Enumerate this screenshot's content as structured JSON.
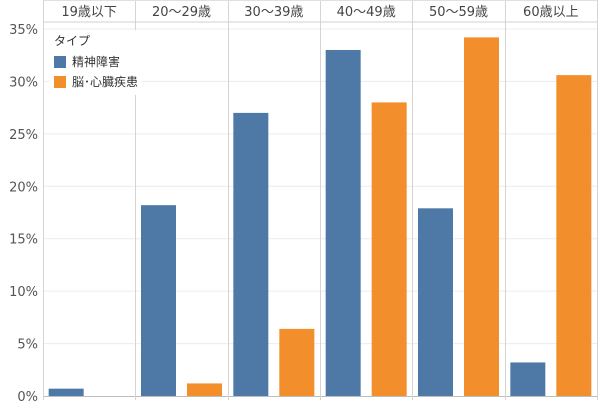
{
  "chart_data": {
    "type": "bar",
    "categories": [
      "19歳以下",
      "20〜29歳",
      "30〜39歳",
      "40〜49歳",
      "50〜59歳",
      "60歳以上"
    ],
    "series": [
      {
        "name": "精神障害",
        "color": "#4e79a7",
        "values": [
          0.7,
          18.2,
          27.0,
          33.0,
          17.9,
          3.2
        ]
      },
      {
        "name": "脳･心臓疾患",
        "color": "#f28e2b",
        "values": [
          null,
          1.2,
          6.4,
          28.0,
          34.2,
          30.6
        ]
      }
    ],
    "legend_title": "タイプ",
    "legend_position": "top-left",
    "ylim": [
      0,
      35
    ],
    "yticks": [
      0,
      5,
      10,
      15,
      20,
      25,
      30,
      35
    ],
    "ytick_labels": [
      "0%",
      "5%",
      "10%",
      "15%",
      "20%",
      "25%",
      "30%",
      "35%"
    ],
    "grid": true
  }
}
